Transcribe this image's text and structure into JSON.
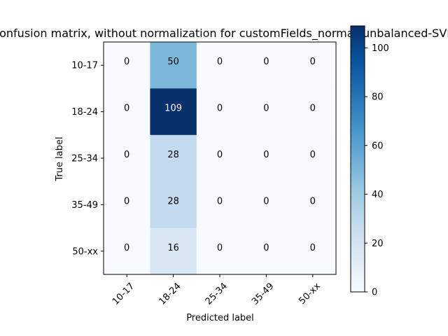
{
  "chart_data": {
    "type": "heatmap",
    "title": "Confusion matrix, without normalization for customFields_normal_unbalanced-SVM",
    "xlabel": "Predicted label",
    "ylabel": "True label",
    "x_categories": [
      "10-17",
      "18-24",
      "25-34",
      "35-49",
      "50-xx"
    ],
    "y_categories": [
      "10-17",
      "18-24",
      "25-34",
      "35-49",
      "50-xx"
    ],
    "values": [
      [
        0,
        50,
        0,
        0,
        0
      ],
      [
        0,
        109,
        0,
        0,
        0
      ],
      [
        0,
        28,
        0,
        0,
        0
      ],
      [
        0,
        28,
        0,
        0,
        0
      ],
      [
        0,
        16,
        0,
        0,
        0
      ]
    ],
    "colormap": "Blues",
    "colorbar": {
      "min": 0,
      "max": 109,
      "ticks": [
        "0",
        "20",
        "40",
        "60",
        "80",
        "100"
      ]
    }
  }
}
